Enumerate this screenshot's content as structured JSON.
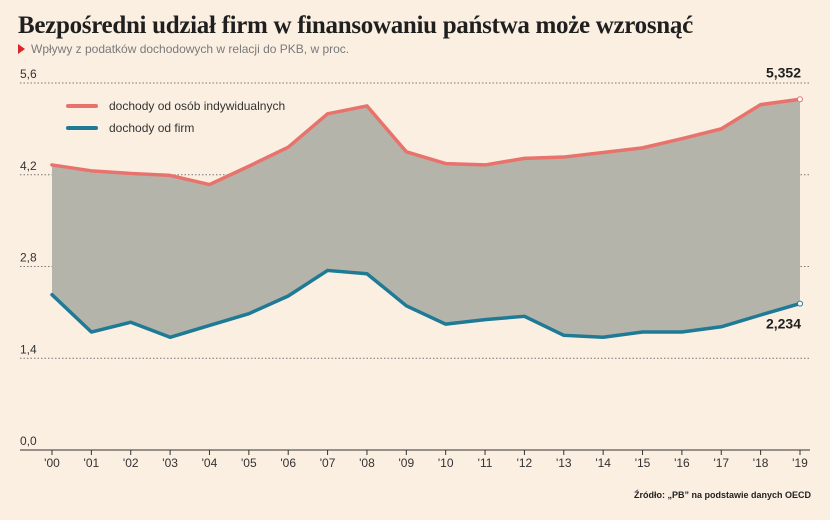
{
  "title": "Bezpośredni udział firm w finansowaniu państwa może wzrosnąć",
  "subtitle": "Wpływy z podatków dochodowych w relacji do PKB, w proc.",
  "source": "Źródło: „PB” na podstawie danych OECD",
  "colors": {
    "background": "#fbefe2",
    "area_fill": "#b5b4aa",
    "individual_line": "#e8736c",
    "firm_line": "#1f7a96",
    "subtitle_marker": "#d9262c"
  },
  "chart_data": {
    "type": "area",
    "categories": [
      "'00",
      "'01",
      "'02",
      "'03",
      "'04",
      "'05",
      "'06",
      "'07",
      "'08",
      "'09",
      "'10",
      "'11",
      "'12",
      "'13",
      "'14",
      "'15",
      "'16",
      "'17",
      "'18",
      "'19"
    ],
    "ylim": [
      0,
      5.6
    ],
    "yticks": [
      "0,0",
      "1,4",
      "2,8",
      "4,2",
      "5,6"
    ],
    "ytick_values": [
      0,
      1.4,
      2.8,
      4.2,
      5.6
    ],
    "grid": true,
    "legend_position": "top-left",
    "series": [
      {
        "name": "dochody od osób indywidualnych",
        "color": "#e8736c",
        "values": [
          4.35,
          4.26,
          4.22,
          4.19,
          4.05,
          4.33,
          4.62,
          5.13,
          5.25,
          4.55,
          4.37,
          4.35,
          4.45,
          4.47,
          4.54,
          4.61,
          4.75,
          4.9,
          5.27,
          5.352
        ]
      },
      {
        "name": "dochody od firm",
        "color": "#1f7a96",
        "values": [
          2.37,
          1.8,
          1.95,
          1.72,
          1.9,
          2.08,
          2.35,
          2.74,
          2.69,
          2.2,
          1.92,
          1.99,
          2.04,
          1.75,
          1.72,
          1.8,
          1.8,
          1.88,
          2.06,
          2.234
        ]
      }
    ],
    "annotations": [
      "5,352",
      "2,234"
    ]
  }
}
